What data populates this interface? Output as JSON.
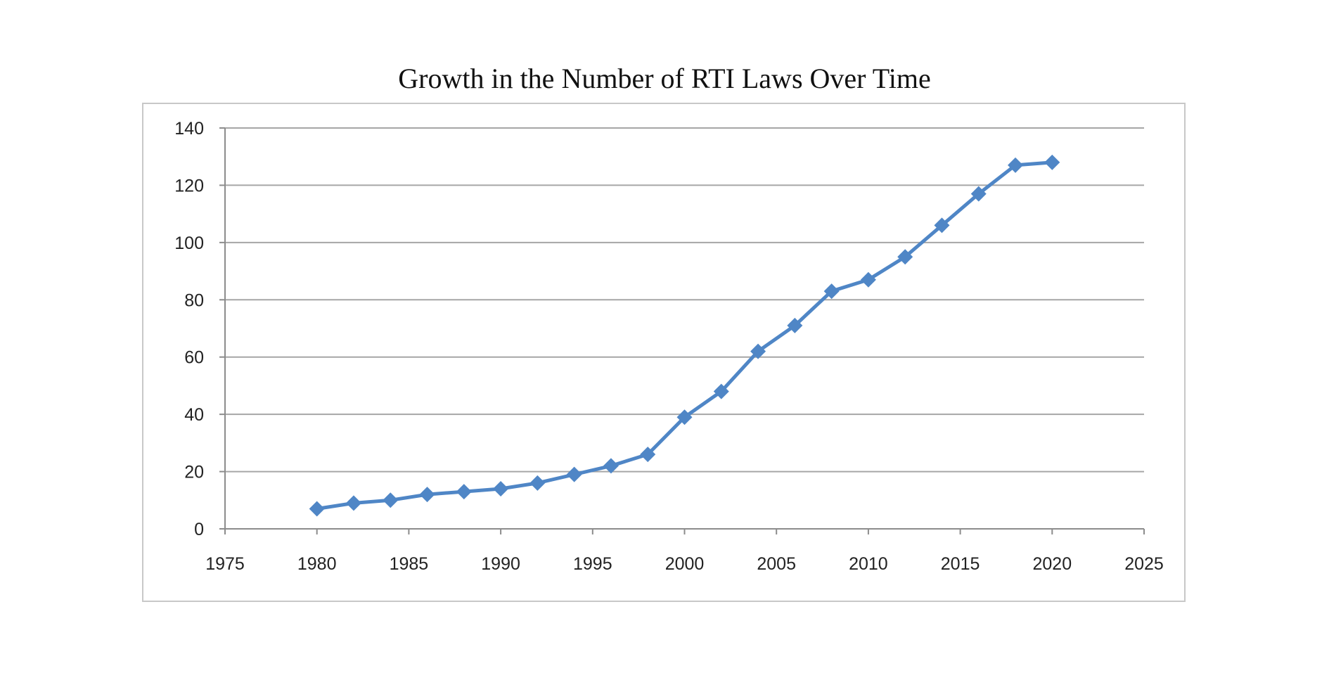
{
  "chart_data": {
    "type": "line",
    "title": "Growth in the Number of RTI Laws Over Time",
    "xlabel": "",
    "ylabel": "",
    "xlim": [
      1975,
      2025
    ],
    "ylim": [
      0,
      140
    ],
    "x_ticks": [
      1975,
      1980,
      1985,
      1990,
      1995,
      2000,
      2005,
      2010,
      2015,
      2020,
      2025
    ],
    "y_ticks": [
      0,
      20,
      40,
      60,
      80,
      100,
      120,
      140
    ],
    "grid": true,
    "legend": "none",
    "series": [
      {
        "color": "#4f86c6",
        "marker": "diamond",
        "points": [
          {
            "x": 1980,
            "y": 7
          },
          {
            "x": 1982,
            "y": 9
          },
          {
            "x": 1984,
            "y": 10
          },
          {
            "x": 1986,
            "y": 12
          },
          {
            "x": 1988,
            "y": 13
          },
          {
            "x": 1990,
            "y": 14
          },
          {
            "x": 1992,
            "y": 16
          },
          {
            "x": 1994,
            "y": 19
          },
          {
            "x": 1996,
            "y": 22
          },
          {
            "x": 1998,
            "y": 26
          },
          {
            "x": 2000,
            "y": 39
          },
          {
            "x": 2002,
            "y": 48
          },
          {
            "x": 2004,
            "y": 62
          },
          {
            "x": 2006,
            "y": 71
          },
          {
            "x": 2008,
            "y": 83
          },
          {
            "x": 2010,
            "y": 87
          },
          {
            "x": 2012,
            "y": 95
          },
          {
            "x": 2014,
            "y": 106
          },
          {
            "x": 2016,
            "y": 117
          },
          {
            "x": 2018,
            "y": 127
          },
          {
            "x": 2020,
            "y": 128
          }
        ]
      }
    ]
  }
}
